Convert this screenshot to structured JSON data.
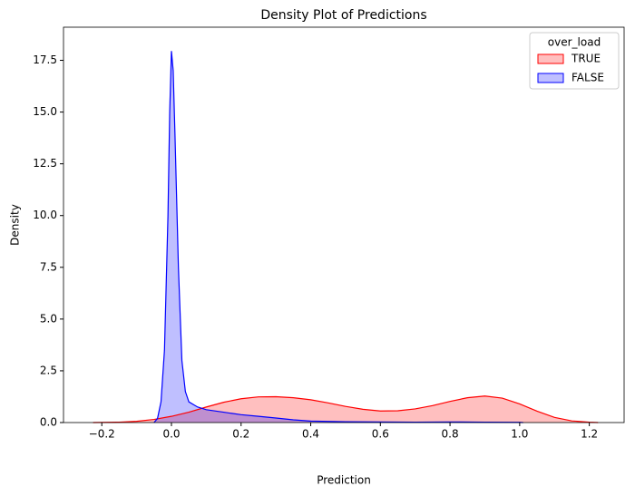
{
  "chart_data": {
    "type": "kde",
    "title": "Density Plot of Predictions",
    "x_label": "Prediction",
    "y_label": "Density",
    "legend_title": "over_load",
    "legend_loc": "upper right",
    "xlim": [
      -0.31,
      1.3
    ],
    "ylim": [
      0,
      19.1
    ],
    "xticks": [
      {
        "value": -0.2,
        "label": "−0.2"
      },
      {
        "value": 0,
        "label": "0.0"
      },
      0.2,
      0.4,
      0.6,
      0.8,
      {
        "value": 1,
        "label": "1.0"
      },
      1.2
    ],
    "yticks": [
      {
        "value": 0,
        "label": "0.0"
      },
      2.5,
      {
        "value": 5,
        "label": "5.0"
      },
      7.5,
      {
        "value": 10,
        "label": "10.0"
      },
      12.5,
      {
        "value": 15,
        "label": "15.0"
      },
      17.5
    ],
    "series": [
      {
        "name": "TRUE",
        "color": "#ff0000",
        "x": [
          -0.225,
          -0.15,
          -0.1,
          -0.05,
          0,
          0.05,
          0.1,
          0.15,
          0.2,
          0.25,
          0.3,
          0.35,
          0.4,
          0.45,
          0.5,
          0.55,
          0.6,
          0.65,
          0.7,
          0.75,
          0.8,
          0.85,
          0.9,
          0.95,
          1.0,
          1.05,
          1.1,
          1.15,
          1.2,
          1.225
        ],
        "values": [
          0,
          0.02,
          0.06,
          0.15,
          0.3,
          0.5,
          0.75,
          0.98,
          1.15,
          1.24,
          1.25,
          1.2,
          1.1,
          0.95,
          0.78,
          0.64,
          0.56,
          0.57,
          0.66,
          0.82,
          1.02,
          1.2,
          1.28,
          1.18,
          0.9,
          0.55,
          0.25,
          0.08,
          0.02,
          0
        ]
      },
      {
        "name": "FALSE",
        "color": "#0000ff",
        "x": [
          -0.05,
          -0.04,
          -0.03,
          -0.02,
          -0.01,
          -0.005,
          0,
          0.005,
          0.01,
          0.02,
          0.03,
          0.04,
          0.05,
          0.075,
          0.1,
          0.15,
          0.2,
          0.25,
          0.3,
          0.35,
          0.4,
          0.5,
          0.6,
          0.7,
          0.8,
          0.9,
          1.0,
          1.01
        ],
        "values": [
          0,
          0.2,
          1.0,
          3.5,
          10,
          15,
          17.95,
          17,
          14,
          7.5,
          3.0,
          1.5,
          1.0,
          0.75,
          0.62,
          0.5,
          0.38,
          0.3,
          0.22,
          0.13,
          0.07,
          0.04,
          0.03,
          0.02,
          0.03,
          0.02,
          0.01,
          0
        ]
      }
    ]
  }
}
